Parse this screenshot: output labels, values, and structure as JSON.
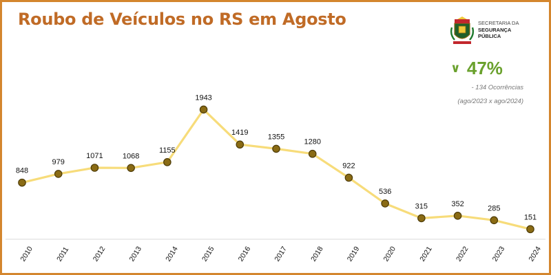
{
  "header": {
    "title": "Roubo de Veículos no RS em Agosto"
  },
  "brand": {
    "line1": "SECRETARIA DA",
    "line2": "SEGURANÇA",
    "line3": "PÚBLICA",
    "crest_icon": "rs-coat-of-arms-icon"
  },
  "summary": {
    "arrow_icon": "down-chevron-icon",
    "percent": "47%",
    "occurrences": "- 134 Ocorrências",
    "comparison": "(ago/2023 x ago/2024)",
    "accent_color": "#6aa12d"
  },
  "colors": {
    "title": "#c06b26",
    "border": "#d4862e",
    "line": "#f7dc7a",
    "marker": "#8a6b14",
    "marker_edge": "#4e3c08"
  },
  "chart_data": {
    "type": "line",
    "categories": [
      "2010",
      "2011",
      "2012",
      "2013",
      "2014",
      "2015",
      "2016",
      "2017",
      "2018",
      "2019",
      "2020",
      "2021",
      "2022",
      "2023",
      "2024"
    ],
    "values": [
      848,
      979,
      1071,
      1068,
      1155,
      1943,
      1419,
      1355,
      1280,
      922,
      536,
      315,
      352,
      285,
      151
    ],
    "data_labels": [
      "848",
      "979",
      "1071",
      "1068",
      "1155",
      "1943",
      "1419",
      "1355",
      "1280",
      "922",
      "536",
      "315",
      "352",
      "285",
      "151"
    ],
    "title": "Roubo de Veículos no RS em Agosto",
    "xlabel": "",
    "ylabel": "",
    "ylim": [
      0,
      2100
    ],
    "grid": false,
    "legend": "none"
  }
}
